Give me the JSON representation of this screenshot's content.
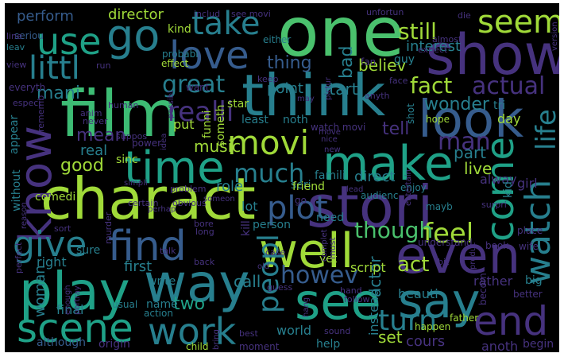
{
  "palette": {
    "background": "#000000",
    "purple": "#46327e",
    "blue": "#365c8d",
    "teal": "#277f8e",
    "green": "#1fa187",
    "lime": "#4ac16d",
    "yellow": "#a0da39"
  },
  "words": {
    "one": "one",
    "show": "show",
    "film": "film",
    "think": "think",
    "charact": "charact",
    "stori": "stori",
    "see": "see",
    "say": "say",
    "even": "even",
    "play": "play",
    "way": "way",
    "well": "well",
    "make": "make",
    "look": "look",
    "know": "know",
    "time": "time",
    "go": "go",
    "use": "use",
    "love": "love",
    "take": "take",
    "seem": "seem",
    "littl": "littl",
    "find": "find",
    "scene": "scene",
    "work": "work",
    "end": "end",
    "give": "give",
    "movi": "movi",
    "come": "come",
    "plot": "plot",
    "watch": "watch",
    "peopl": "peopl",
    "much": "much",
    "great": "great",
    "realli": "realli",
    "turn": "turn",
    "feel": "feel",
    "though": "though",
    "howev": "howev",
    "life": "life",
    "fact": "fact",
    "man": "man",
    "actual": "actual",
    "still": "still",
    "interest": "interest",
    "director": "director",
    "perform": "perform",
    "believ": "believ",
    "thing": "thing",
    "bad": "bad",
    "start": "start",
    "point": "point",
    "mani": "mani",
    "mean": "mean",
    "wonder": "wonder",
    "good": "good",
    "music": "music",
    "part": "part",
    "live": "live",
    "tell": "tell",
    "act": "act",
    "actor": "actor",
    "set": "set",
    "cours": "cours",
    "two": "two",
    "first": "first",
    "right": "right",
    "woman": "woman",
    "call": "call",
    "seri": "seri",
    "friend": "friend",
    "lot": "lot",
    "kill": "kill",
    "person": "person",
    "world": "world",
    "script": "script",
    "anoth": "anoth",
    "begin": "begin",
    "although": "although",
    "origin": "origin",
    "comedi": "comedi",
    "real": "real",
    "sinc": "sinc",
    "role": "role",
    "famili": "famili",
    "direct": "direct",
    "need": "need",
    "noth": "noth",
    "least": "least",
    "someth": "someth",
    "funni": "funni",
    "star": "star",
    "put": "put",
    "appear": "appear",
    "kind": "kind",
    "guy": "guy",
    "fan": "fan",
    "either": "either",
    "probabl": "probabl",
    "effect": "effect",
    "want": "want",
    "day": "day",
    "alway": "alway",
    "girl": "girl",
    "kid": "kid",
    "hope": "hope",
    "shot": "shot",
    "yet": "yet",
    "feel2": "go",
    "instead": "instead",
    "rather": "rather",
    "big": "big",
    "better": "better",
    "understand": "understand",
    "book": "book",
    "place": "place",
    "wife": "wife",
    "mayb": "mayb",
    "enjoy": "enjoy",
    "audienc": "audienc",
    "entertain": "entertain",
    "help": "help",
    "happen": "happen",
    "child": "child",
    "moment": "moment",
    "father": "father",
    "becom": "becom",
    "beauti": "beauti",
    "final": "final",
    "name": "name",
    "write": "write",
    "usual": "usual",
    "action": "action",
    "sure": "sure",
    "without": "without",
    "seriou": "seriou",
    "leav": "leav",
    "line": "line",
    "view": "view",
    "everyth": "everyth",
    "especi": "especi",
    "rememb": "rememb",
    "anim": "anim",
    "never": "never",
    "human": "human",
    "run": "run",
    "possibl": "possibl",
    "suppos": "suppos",
    "power": "power",
    "idea": "idea",
    "problem": "problem",
    "certain": "certain",
    "obvious": "obvious",
    "someon": "someon",
    "perhap": "perhap",
    "bore": "bore",
    "long": "long",
    "talk": "talk",
    "murder": "murder",
    "sort": "sort",
    "perfect": "perfect",
    "back": "back",
    "old": "old",
    "case": "case",
    "guess": "guess",
    "must": "must",
    "complet": "complet",
    "produc": "produc",
    "hand": "hand",
    "follow": "follow",
    "bring": "bring",
    "best": "best",
    "sound": "sound",
    "includ": "includ",
    "see_movi": "see movi",
    "unfortun": "unfortun",
    "die": "die",
    "almost": "almost",
    "expect": "expect",
    "version": "version",
    "keep": "keep",
    "may": "may",
    "picture": "pictur",
    "anyth": "anyth",
    "face": "face",
    "tri": "tri",
    "watch_movi": "watch movi",
    "move": "move",
    "nice": "nice",
    "new": "new",
    "lead": "lead",
    "simpli": "simpli",
    "reason": "reason",
    "enough": "enough",
    "portray": "portray",
    "bit": "bit",
    "surpri": "surpri",
    "hang": "hang"
  }
}
